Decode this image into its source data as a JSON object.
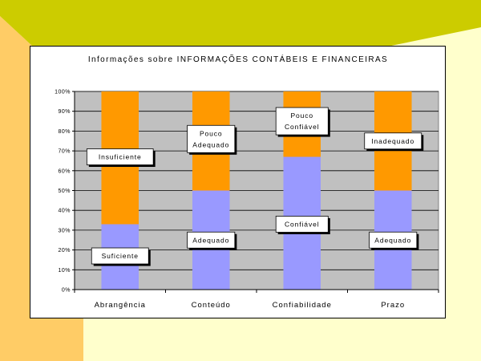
{
  "colors": {
    "slide_background": "#FFFFCC",
    "left_band": "#FFCC66",
    "top_wedge": "#CCCC00",
    "plot_background": "#C0C0C0",
    "series_blue": "#9999FF",
    "series_orange": "#FF9900"
  },
  "chart_data": {
    "type": "bar",
    "stacked": true,
    "title": "Informações sobre INFORMAÇÕES CONTÁBEIS E FINANCEIRAS",
    "categories": [
      "Abrangência",
      "Conteúdo",
      "Confiabilidade",
      "Prazo"
    ],
    "y_ticks": [
      "0%",
      "10%",
      "20%",
      "30%",
      "40%",
      "50%",
      "60%",
      "70%",
      "80%",
      "90%",
      "100%"
    ],
    "ylim": [
      0,
      100
    ],
    "grid": true,
    "series": [
      {
        "color": "#9999FF",
        "values": [
          33,
          50,
          67,
          50
        ]
      },
      {
        "color": "#FF9900",
        "values": [
          67,
          50,
          33,
          50
        ]
      }
    ],
    "annotations": [
      {
        "lines": [
          "Suficiente"
        ],
        "category": 0,
        "value": 17
      },
      {
        "lines": [
          "Insuficiente"
        ],
        "category": 0,
        "value": 67
      },
      {
        "lines": [
          "Adequado"
        ],
        "category": 1,
        "value": 25
      },
      {
        "lines": [
          "Pouco",
          "Adequado"
        ],
        "category": 1,
        "value": 76
      },
      {
        "lines": [
          "Confiável"
        ],
        "category": 2,
        "value": 33
      },
      {
        "lines": [
          "Pouco",
          "Confiável"
        ],
        "category": 2,
        "value": 85
      },
      {
        "lines": [
          "Adequado"
        ],
        "category": 3,
        "value": 25
      },
      {
        "lines": [
          "Inadequado"
        ],
        "category": 3,
        "value": 75
      }
    ]
  }
}
